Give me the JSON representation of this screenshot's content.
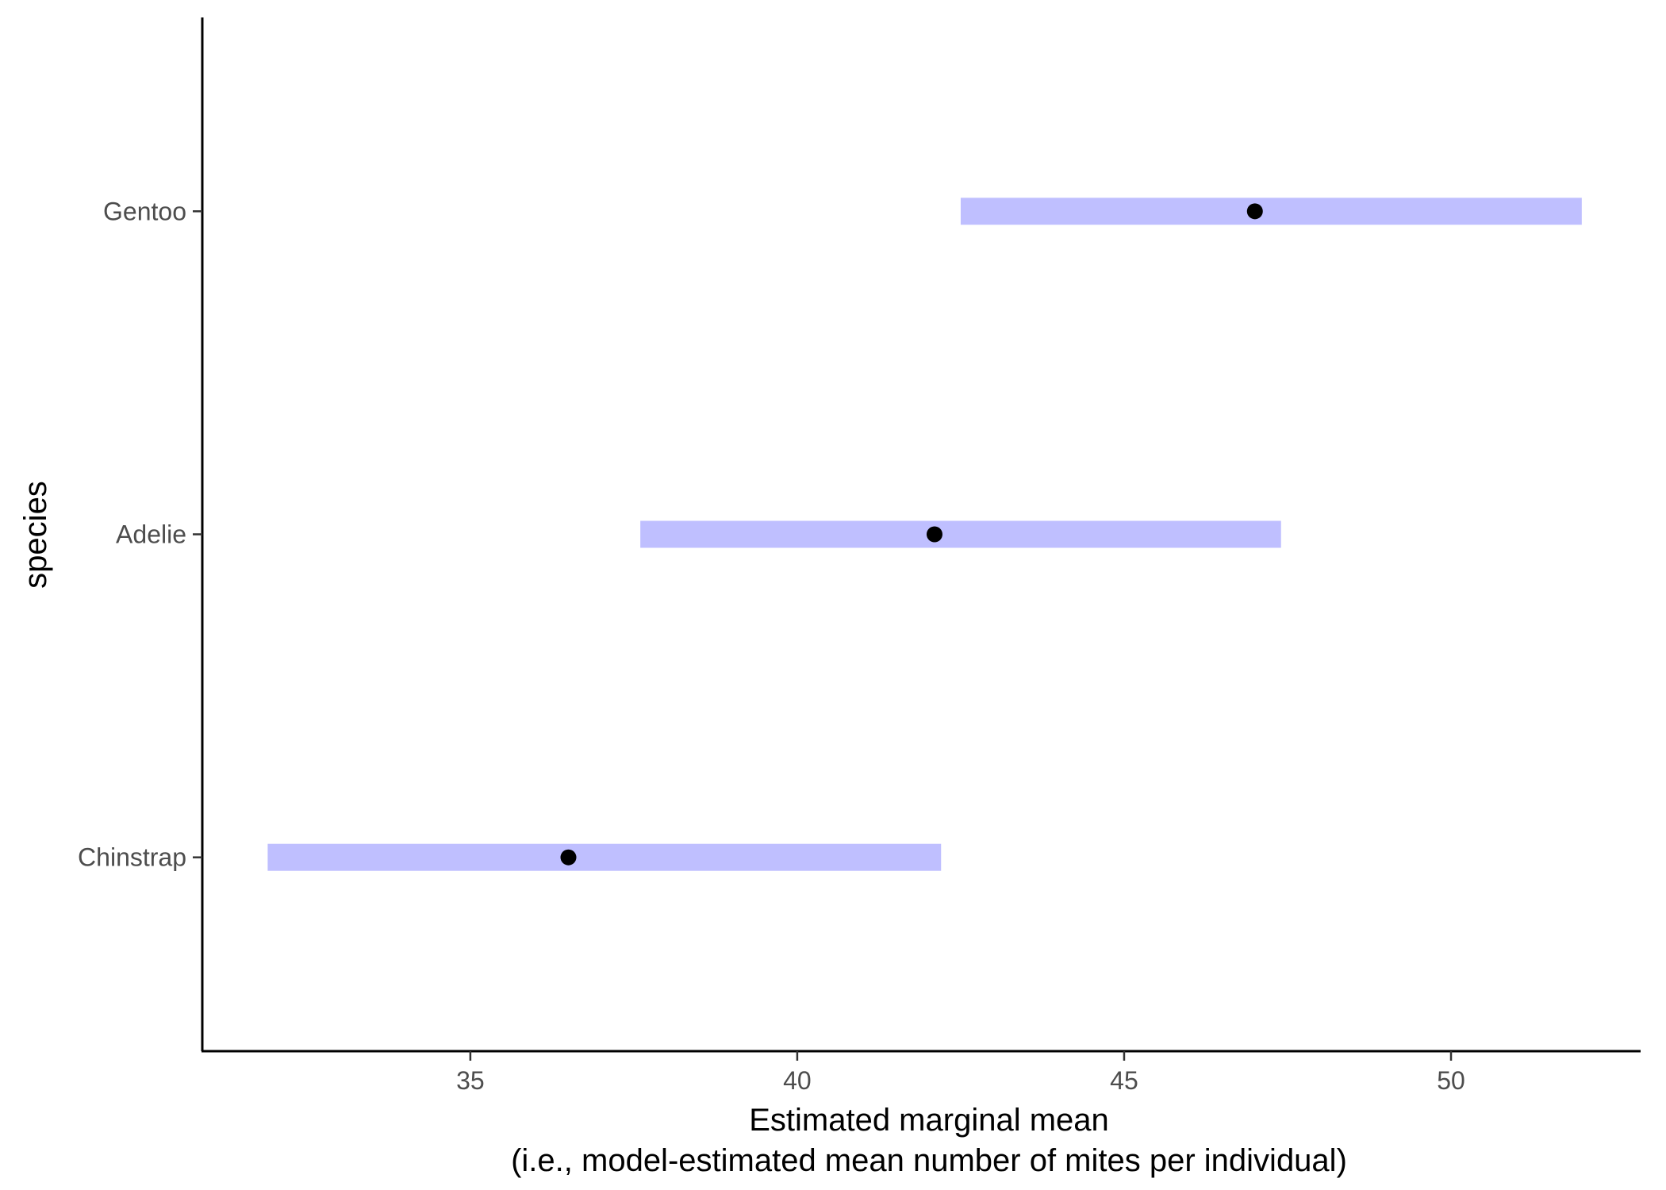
{
  "chart_data": {
    "type": "interval",
    "xlabel_line1": "Estimated marginal mean",
    "xlabel_line2": "(i.e., model-estimated mean number of mites per individual)",
    "ylabel": "species",
    "xlim": [
      30.9,
      52.9
    ],
    "x_ticks": [
      35,
      40,
      45,
      50
    ],
    "categories": [
      "Chinstrap",
      "Adelie",
      "Gentoo"
    ],
    "series": [
      {
        "estimate": [
          36.5,
          42.1,
          47.0
        ],
        "lower": [
          31.9,
          37.6,
          42.5
        ],
        "upper": [
          42.2,
          47.4,
          52.0
        ]
      }
    ],
    "interval_color": "#bfbfff",
    "point_color": "#000000",
    "grid": false,
    "legend": "none"
  }
}
